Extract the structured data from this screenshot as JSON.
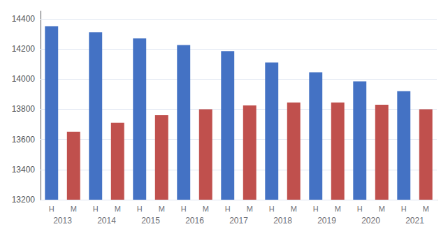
{
  "chart_data": {
    "type": "bar",
    "categories": [
      "2013",
      "2014",
      "2015",
      "2016",
      "2017",
      "2018",
      "2019",
      "2020",
      "2021"
    ],
    "series": [
      {
        "name": "H",
        "color": "#4472C4",
        "values": [
          14350,
          14310,
          14270,
          14225,
          14185,
          14110,
          14045,
          13985,
          13920
        ]
      },
      {
        "name": "M",
        "color": "#C0504D",
        "values": [
          13650,
          13710,
          13760,
          13800,
          13825,
          13845,
          13845,
          13830,
          13800
        ]
      }
    ],
    "ylim": [
      13200,
      14450
    ],
    "yticks": [
      13200,
      13400,
      13600,
      13800,
      14000,
      14200,
      14400
    ],
    "grid": true
  }
}
